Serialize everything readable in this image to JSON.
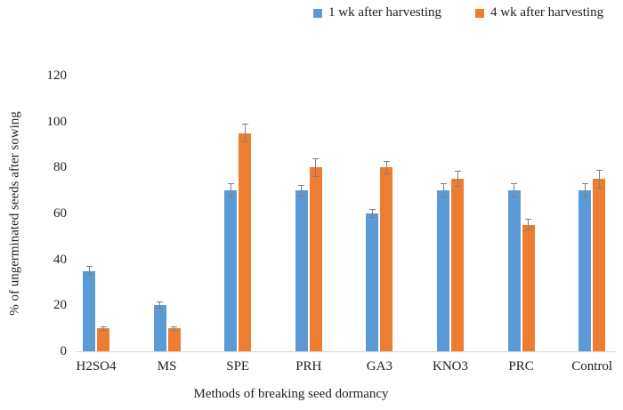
{
  "chart_data": {
    "type": "bar",
    "title": "",
    "xlabel": "Methods of breaking seed dormancy",
    "ylabel": "% of ungerminated seeds after sowing",
    "categories": [
      "H2SO4",
      "MS",
      "SPE",
      "PRH",
      "GA3",
      "KNO3",
      "PRC",
      "Control"
    ],
    "series": [
      {
        "name": "1 wk after harvesting",
        "color": "#5B9BD5",
        "values": [
          35,
          20,
          70,
          70,
          60,
          70,
          70,
          70
        ],
        "errors": [
          2,
          1.5,
          3,
          2.5,
          2,
          3,
          3,
          3
        ]
      },
      {
        "name": "4 wk after harvesting",
        "color": "#ED7D31",
        "values": [
          10,
          10,
          95,
          80,
          80,
          75,
          55,
          75
        ],
        "errors": [
          1,
          1,
          4,
          4,
          3,
          3.5,
          2.5,
          4
        ]
      }
    ],
    "ylim": [
      0,
      120
    ],
    "yticks": [
      0,
      20,
      40,
      60,
      80,
      100,
      120
    ],
    "grid": false,
    "legend_position": "top",
    "error_bars": true,
    "error_bar_color": "#7f7f7f",
    "axis_line_color": "#d9d9d9",
    "text_color": "#1f1f1f",
    "background_color": "#ffffff"
  }
}
